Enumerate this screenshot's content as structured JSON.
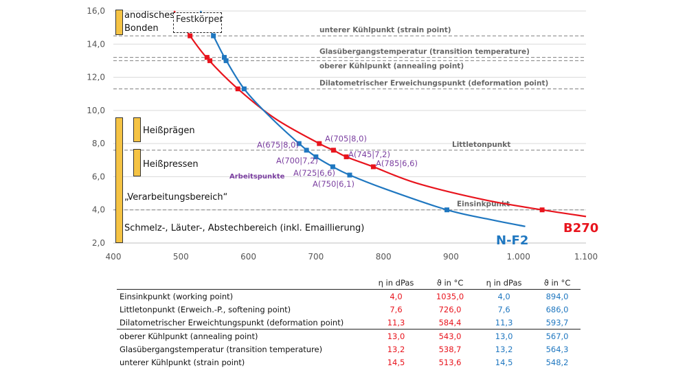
{
  "chart_data": {
    "type": "line",
    "xlim": [
      400,
      1100
    ],
    "ylim": [
      2,
      16
    ],
    "x_ticks": [
      "400",
      "500",
      "600",
      "700",
      "800",
      "900",
      "1.000",
      "1.100"
    ],
    "y_ticks": [
      "2,0",
      "4,0",
      "6,0",
      "8,0",
      "10,0",
      "12,0",
      "14,0",
      "16,0"
    ],
    "grid": "horizontal",
    "series": [
      {
        "name": "B270",
        "color": "#e8141d",
        "points": [
          [
            513.6,
            14.5
          ],
          [
            538.7,
            13.2
          ],
          [
            543.0,
            13.0
          ],
          [
            584.4,
            11.3
          ],
          [
            705,
            8.0
          ],
          [
            726.0,
            7.6
          ],
          [
            745,
            7.2
          ],
          [
            785,
            6.6
          ],
          [
            1035.0,
            4.0
          ]
        ],
        "curve": [
          [
            490,
            16.0
          ],
          [
            513.6,
            14.5
          ],
          [
            540,
            13.1
          ],
          [
            584.4,
            11.3
          ],
          [
            640,
            9.5
          ],
          [
            705,
            8.0
          ],
          [
            726,
            7.6
          ],
          [
            745,
            7.2
          ],
          [
            785,
            6.6
          ],
          [
            850,
            5.6
          ],
          [
            950,
            4.6
          ],
          [
            1035,
            4.0
          ],
          [
            1100,
            3.6
          ]
        ]
      },
      {
        "name": "N-F2",
        "color": "#1f77c0",
        "points": [
          [
            548.2,
            14.5
          ],
          [
            564.3,
            13.2
          ],
          [
            567.0,
            13.0
          ],
          [
            593.7,
            11.3
          ],
          [
            675,
            8.0
          ],
          [
            686.0,
            7.6
          ],
          [
            700,
            7.2
          ],
          [
            725,
            6.6
          ],
          [
            750,
            6.1
          ],
          [
            894.0,
            4.0
          ]
        ],
        "curve": [
          [
            529,
            16.0
          ],
          [
            548.2,
            14.5
          ],
          [
            566,
            13.1
          ],
          [
            593.7,
            11.3
          ],
          [
            630,
            9.7
          ],
          [
            675,
            8.0
          ],
          [
            700,
            7.2
          ],
          [
            725,
            6.6
          ],
          [
            750,
            6.1
          ],
          [
            800,
            5.3
          ],
          [
            894,
            4.0
          ],
          [
            960,
            3.4
          ],
          [
            1010,
            3.0
          ]
        ]
      }
    ],
    "reference_lines": [
      {
        "y": 14.5,
        "label": "unterer Kühlpunkt (strain point)"
      },
      {
        "y": 13.2,
        "label": "Glasübergangstemperatur (transition temperature)"
      },
      {
        "y": 13.0,
        "label": "oberer Kühlpunkt (annealing point)"
      },
      {
        "y": 11.3,
        "label": "Dilatometrischer Erweichungspunkt (deformation point)"
      },
      {
        "y": 7.6,
        "label": "Littletonpunkt"
      },
      {
        "y": 4.0,
        "label": "Einsinkpunkt"
      }
    ],
    "point_labels": [
      {
        "text": "A(675|8,0)",
        "series": "N-F2"
      },
      {
        "text": "A(700|7,2)",
        "series": "N-F2"
      },
      {
        "text": "A(725|6,6)",
        "series": "N-F2"
      },
      {
        "text": "A(750|6,1)",
        "series": "N-F2"
      },
      {
        "text": "A(705|8,0)",
        "series": "B270"
      },
      {
        "text": "A(745|7,2)",
        "series": "B270"
      },
      {
        "text": "A(785|6,6)",
        "series": "B270"
      }
    ],
    "annotation": "Arbeitspunkte",
    "ranges": [
      {
        "label": "anodisches Bonden",
        "y_from": 14.5,
        "y_to": 16.0
      },
      {
        "label": "Heißprägen",
        "y_from": 8.0,
        "y_to": 9.6
      },
      {
        "label": "Heißpressen",
        "y_from": 6.6,
        "y_to": 7.8
      },
      {
        "label": "„Verarbeitungsbereich“",
        "y_from": 2.0,
        "y_to": 9.6
      },
      {
        "label": "Schmelz-, Läuter-, Abstechbereich (inkl. Emaillierung)",
        "y_from": 2.0,
        "y_to": 9.6
      }
    ],
    "boxed_label": "Festkörper"
  },
  "labels": {
    "festkoerper": "Festkörper",
    "anodisch_1": "anodisches",
    "anodisch_2": "Bonden",
    "heisspraegen": "Heißprägen",
    "heisspressen": "Heißpressen",
    "verarbeitung": "„Verarbeitungsbereich“",
    "schmelz": "Schmelz-, Läuter-, Abstechbereich (inkl. Emaillierung)"
  },
  "table": {
    "headers": [
      "",
      "η in dPas",
      "ϑ in °C",
      "η in dPas",
      "ϑ in °C"
    ],
    "header_colors": [
      "#222",
      "#222",
      "#222",
      "#222",
      "#222"
    ],
    "rows": [
      {
        "label": "Einsinkpunkt (working point)",
        "b270_eta": "4,0",
        "b270_t": "1035,0",
        "nf2_eta": "4,0",
        "nf2_t": "894,0"
      },
      {
        "label": "Littletonpunkt (Erweich.-P., softening point)",
        "b270_eta": "7,6",
        "b270_t": "726,0",
        "nf2_eta": "7,6",
        "nf2_t": "686,0"
      },
      {
        "label": "Dilatometrischer Erweichtungspunkt (deformation point)",
        "b270_eta": "11,3",
        "b270_t": "584,4",
        "nf2_eta": "11,3",
        "nf2_t": "593,7"
      },
      {
        "label": "oberer Kühlpunkt (annealing point)",
        "b270_eta": "13,0",
        "b270_t": "543,0",
        "nf2_eta": "13,0",
        "nf2_t": "567,0"
      },
      {
        "label": "Glasübergangstemperatur (transition temperature)",
        "b270_eta": "13,2",
        "b270_t": "538,7",
        "nf2_eta": "13,2",
        "nf2_t": "564,3"
      },
      {
        "label": "unterer Kühlpunkt (strain point)",
        "b270_eta": "14,5",
        "b270_t": "513,6",
        "nf2_eta": "14,5",
        "nf2_t": "548,2"
      }
    ]
  }
}
